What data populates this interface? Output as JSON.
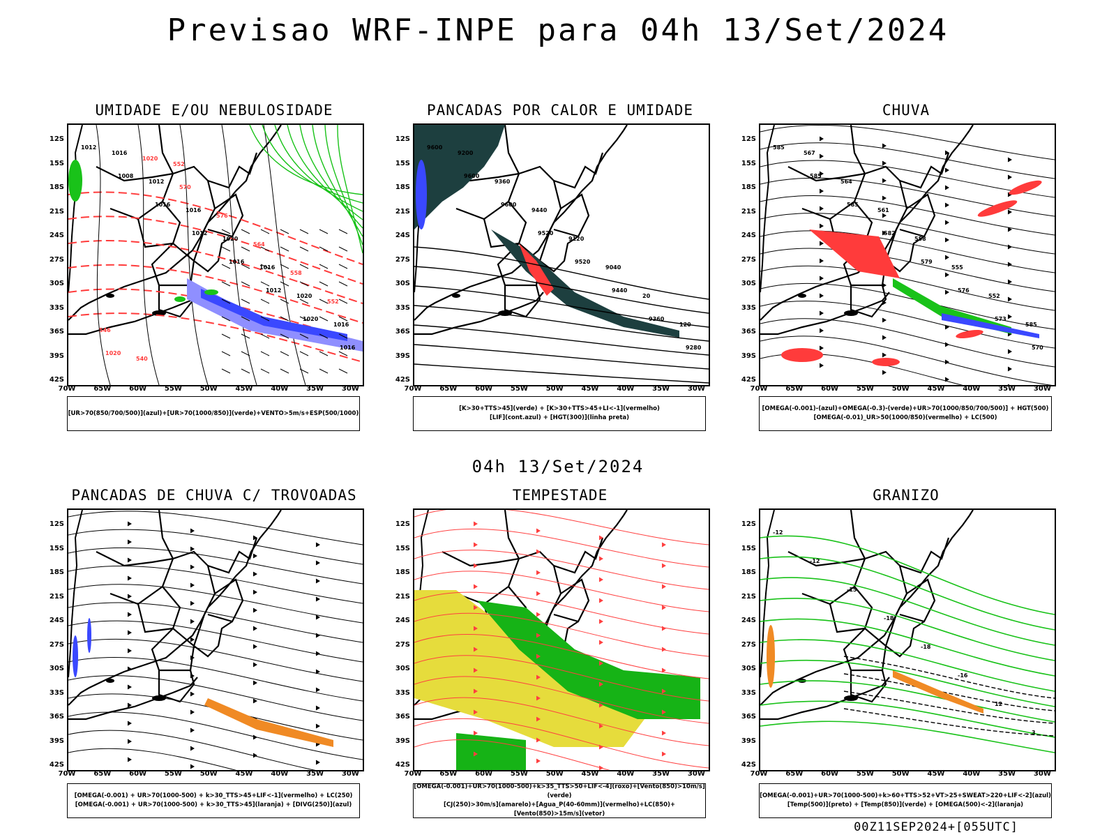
{
  "header": {
    "title": "Previsao WRF-INPE  para 04h 13/Set/2024",
    "subtitle": "04h 13/Set/2024",
    "footer": "00Z11SEP2024+[055UTC]"
  },
  "axes": {
    "lat": [
      "12S",
      "15S",
      "18S",
      "21S",
      "24S",
      "27S",
      "30S",
      "33S",
      "36S",
      "39S",
      "42S"
    ],
    "lon": [
      "70W",
      "65W",
      "60W",
      "55W",
      "50W",
      "45W",
      "40W",
      "35W",
      "30W"
    ]
  },
  "panels": [
    {
      "id": "umidade",
      "title": "UMIDADE E/OU NEBULOSIDADE",
      "legend": [
        "[UR>70(850/700/500)](azul)+[UR>70(1000/850)](verde)+VENTO>5m/s+ESP(500/1000)"
      ],
      "contour_labels": [
        "1012",
        "1008",
        "1016",
        "1012",
        "1016",
        "1012",
        "1020",
        "1016",
        "1016",
        "1012",
        "1016",
        "1020",
        "1016",
        "1020",
        "1016",
        "1020",
        "1020",
        "570",
        "576",
        "564",
        "558",
        "552",
        "546",
        "540",
        "552"
      ]
    },
    {
      "id": "pancadas-calor",
      "title": "PANCADAS POR CALOR E UMIDADE",
      "legend": [
        "[K>30+TTS>45](verde) + [K>30+TTS>45+LI<-1](vermelho)",
        "[LIF](cont.azul) + [HGT(300)](linha preta)"
      ],
      "contour_labels": [
        "9600",
        "9600",
        "9600",
        "9520",
        "9520",
        "9440",
        "9360",
        "9280",
        "9200",
        "9360",
        "9440",
        "9120",
        "9040",
        "20",
        "120"
      ]
    },
    {
      "id": "chuva",
      "title": "CHUVA",
      "legend": [
        "[OMEGA(-0.001)-(azul)+OMEGA(-0.3)-(verde)+UR>70(1000/850/700/500)] + HGT(500)",
        "[OMEGA(-0.01)_UR>50(1000/850)(vermelho) + LC(500)"
      ],
      "contour_labels": [
        "585",
        "585",
        "585",
        "582",
        "579",
        "576",
        "573",
        "570",
        "567",
        "564",
        "561",
        "558",
        "555",
        "552",
        "585"
      ]
    },
    {
      "id": "trovoadas",
      "title": "PANCADAS DE CHUVA C/ TROVOADAS",
      "legend": [
        "[OMEGA(-0.001) + UR>70(1000-500) + k>30_TTS>45+LIF<-1](vermelho) + LC(250)",
        "[OMEGA(-0.001) + UR>70(1000-500) + k>30_TTS>45](laranja) + [DIVG(250)](azul)"
      ],
      "contour_labels": []
    },
    {
      "id": "tempestade",
      "title": "TEMPESTADE",
      "legend": [
        "[OMEGA(-0.001)+UR>70(1000-500)+k>35_TTS>50+LIF<-4](roxo)+[Vento(850)>10m/s](verde)",
        "[CJ(250)>30m/s](amarelo)+[Agua_P(40-60mm)](vermelho)+LC(850)+[Vento(850)>15m/s](vetor)"
      ],
      "contour_labels": []
    },
    {
      "id": "granizo",
      "title": "GRANIZO",
      "legend": [
        "[OMEGA(-0.001)+UR>70(1000-500)+k>60+TTS>52+VT>25+SWEAT>220+LIF<-2](azul)",
        "[Temp(500)](preto) + [Temp(850)](verde) + [OMEGA(500)<-2](laranja)"
      ],
      "contour_labels": [
        "-12",
        "-12",
        "-15",
        "-18",
        "-18",
        "-16",
        "12",
        "3"
      ]
    }
  ],
  "colors": {
    "coast": "#000000",
    "red": "#ff3b3b",
    "green": "#19c219",
    "blue": "#3a48ff",
    "lightblue": "#8f8fff",
    "dark_teal": "#1d3f3f",
    "orange": "#f08a24",
    "yellow": "#e6dc3c"
  }
}
